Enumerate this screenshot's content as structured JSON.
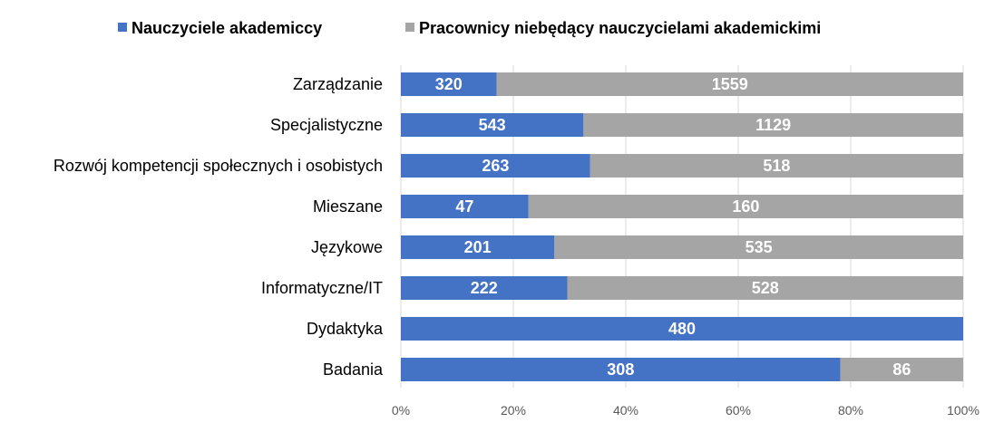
{
  "chart_data": {
    "type": "bar",
    "orientation": "horizontal",
    "stacking": "percent",
    "categories": [
      "Zarządzanie",
      "Specjalistyczne",
      "Rozwój kompetencji społecznych i osobistych",
      "Mieszane",
      "Językowe",
      "Informatyczne/IT",
      "Dydaktyka",
      "Badania"
    ],
    "series": [
      {
        "name": "Nauczyciele akademiccy",
        "color": "#4472c4",
        "values": [
          320,
          543,
          263,
          47,
          201,
          222,
          480,
          308
        ]
      },
      {
        "name": "Pracownicy niebędący nauczycielami akademickimi",
        "color": "#a5a5a5",
        "values": [
          1559,
          1129,
          518,
          160,
          535,
          528,
          null,
          86
        ]
      }
    ],
    "xticks": [
      "0%",
      "20%",
      "40%",
      "60%",
      "80%",
      "100%"
    ],
    "xlim": [
      0,
      100
    ],
    "grid": true,
    "legend": "top"
  }
}
